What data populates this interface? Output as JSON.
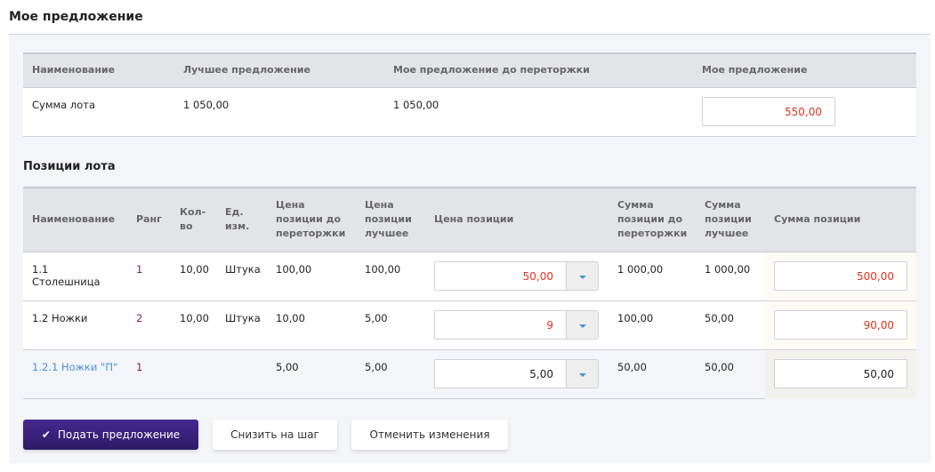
{
  "title": "Мое предложение",
  "lot_table": {
    "headers": [
      "Наименование",
      "Лучшее предложение",
      "Мое предложение до переторжки",
      "Мое предложение"
    ],
    "row": {
      "name": "Сумма лота",
      "best": "1 050,00",
      "before": "1 050,00",
      "mine": "550,00"
    }
  },
  "positions_title": "Позиции лота",
  "positions_table": {
    "headers": [
      "Наименование",
      "Ранг",
      "Кол-во",
      "Ед. изм.",
      "Цена позиции до переторжки",
      "Цена позиции лучшее",
      "Цена позиции",
      "Сумма позиции до переторжки",
      "Сумма позиции лучшее",
      "Сумма позиции"
    ],
    "rows": [
      {
        "name": "1.1 Столешница",
        "rank": "1",
        "qty": "10,00",
        "unit": "Штука",
        "price_before": "100,00",
        "price_best": "100,00",
        "price": "50,00",
        "sum_before": "1 000,00",
        "sum_best": "1 000,00",
        "sum": "500,00"
      },
      {
        "name": "1.2 Ножки",
        "rank": "2",
        "qty": "10,00",
        "unit": "Штука",
        "price_before": "10,00",
        "price_best": "5,00",
        "price": "9",
        "sum_before": "100,00",
        "sum_best": "50,00",
        "sum": "90,00"
      },
      {
        "name": "1.2.1 Ножки \"П\"",
        "rank": "1",
        "qty": "",
        "unit": "",
        "price_before": "5,00",
        "price_best": "5,00",
        "price": "5,00",
        "sum_before": "50,00",
        "sum_best": "50,00",
        "sum": "50,00"
      }
    ]
  },
  "buttons": {
    "submit": "Подать предложение",
    "lower": "Снизить на шаг",
    "cancel": "Отменить изменения"
  },
  "colors": {
    "accent": "#3a2180",
    "changed_value": "#e0321c",
    "sub_item": "#4a90d9"
  }
}
